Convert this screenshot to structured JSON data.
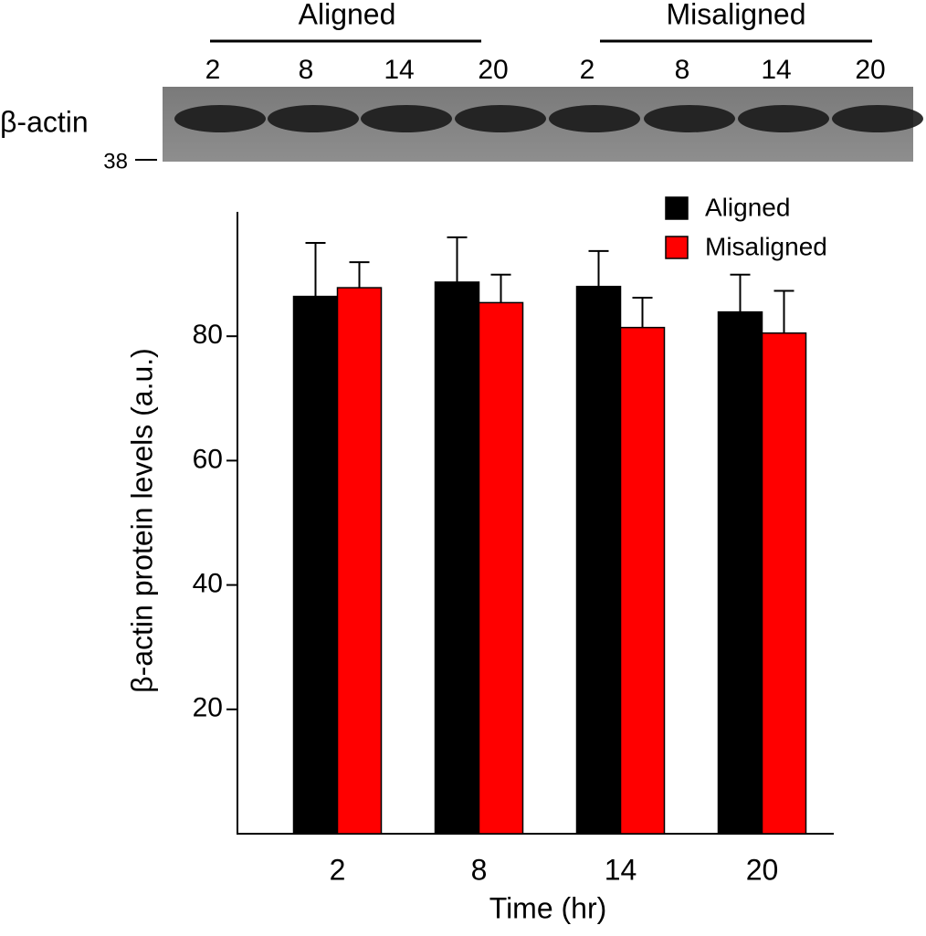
{
  "blot": {
    "groups": [
      {
        "label": "Aligned",
        "lanes": [
          "2",
          "8",
          "14",
          "20"
        ]
      },
      {
        "label": "Misaligned",
        "lanes": [
          "2",
          "8",
          "14",
          "20"
        ]
      }
    ],
    "protein": "β-actin",
    "marker": "38"
  },
  "chart_data": {
    "type": "bar",
    "x_label": "Time (hr)",
    "y_label": "β-actin protein levels (a.u.)",
    "categories": [
      "2",
      "8",
      "14",
      "20"
    ],
    "series": [
      {
        "name": "Aligned",
        "color": "#000000",
        "values": [
          86.4,
          88.7,
          88.0,
          83.9
        ],
        "errors": [
          8.6,
          7.2,
          5.7,
          6.0
        ]
      },
      {
        "name": "Misaligned",
        "color": "#ff0000",
        "values": [
          87.8,
          85.4,
          81.4,
          80.5
        ],
        "errors": [
          4.1,
          4.5,
          4.8,
          6.8
        ]
      }
    ],
    "ylim": [
      0,
      100
    ],
    "yticks": [
      20,
      40,
      60,
      80
    ],
    "legend": "upper right"
  }
}
